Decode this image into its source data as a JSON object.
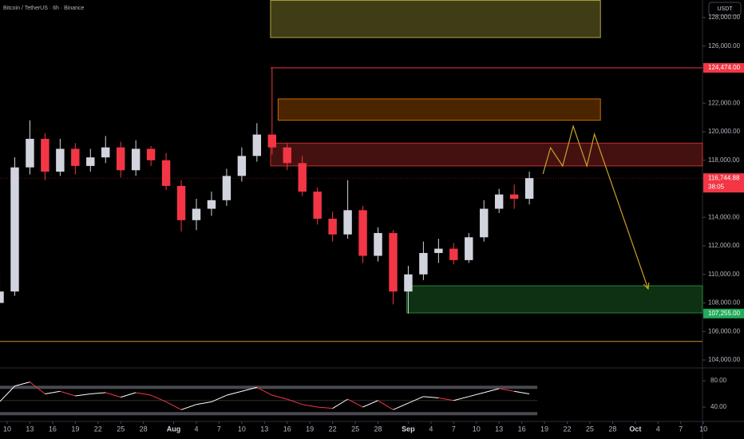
{
  "header": {
    "title": "Bitcoin / TetherUS · 6h · Binance",
    "currency_button": "USDT"
  },
  "chart_data": {
    "type": "candlestick",
    "x": [
      -1,
      1,
      3,
      5,
      7,
      9,
      11,
      13,
      15,
      17,
      19,
      21,
      23,
      25,
      27,
      29,
      31,
      33,
      35,
      37,
      39,
      41,
      43,
      45,
      47,
      49,
      51,
      53,
      55,
      57,
      59,
      61,
      63,
      65,
      67,
      69
    ],
    "open": [
      108000,
      108800,
      117500,
      119500,
      117200,
      118800,
      117600,
      118200,
      118900,
      117300,
      118800,
      118000,
      116200,
      113800,
      114600,
      115200,
      116900,
      118300,
      119800,
      118900,
      117800,
      115800,
      113900,
      112800,
      114500,
      111300,
      112900,
      108800,
      110000,
      111500,
      111800,
      111000,
      112600,
      114600,
      115600,
      115300
    ],
    "high": [
      110000,
      118200,
      120800,
      119900,
      119500,
      119200,
      118800,
      119700,
      119300,
      119400,
      119000,
      118500,
      116600,
      115300,
      115800,
      117400,
      118900,
      120600,
      124474,
      119200,
      118300,
      116100,
      114400,
      116600,
      114800,
      113300,
      113100,
      110600,
      112300,
      112500,
      112200,
      112900,
      115200,
      116000,
      116300,
      117200
    ],
    "low": [
      108200,
      108500,
      117000,
      116600,
      116900,
      117000,
      117200,
      117800,
      116800,
      116900,
      117600,
      115900,
      113000,
      113100,
      114100,
      114800,
      116500,
      117900,
      118400,
      117300,
      115500,
      113500,
      112300,
      112500,
      110800,
      110900,
      107900,
      107255,
      109600,
      110800,
      110700,
      110800,
      112300,
      114300,
      114600,
      114900
    ],
    "close": [
      108800,
      117500,
      119500,
      117200,
      118800,
      117600,
      118200,
      118900,
      117300,
      118800,
      118000,
      116200,
      113800,
      114600,
      115200,
      116900,
      118300,
      119800,
      118900,
      117800,
      115800,
      113900,
      112800,
      114500,
      111300,
      112900,
      108800,
      110000,
      111500,
      111800,
      111000,
      112600,
      114600,
      115600,
      115300,
      116744.88
    ],
    "up_color": "#d1d4dc",
    "down_color": "#f23645",
    "xlim": [
      -0.95,
      91.88
    ],
    "xticks": [
      {
        "value": 0,
        "label": "10"
      },
      {
        "value": 3,
        "label": "13"
      },
      {
        "value": 6,
        "label": "16"
      },
      {
        "value": 9,
        "label": "19"
      },
      {
        "value": 12,
        "label": "22"
      },
      {
        "value": 15,
        "label": "25"
      },
      {
        "value": 18,
        "label": "28"
      },
      {
        "value": 22,
        "label": "Aug"
      },
      {
        "value": 25,
        "label": "4"
      },
      {
        "value": 28,
        "label": "7"
      },
      {
        "value": 31,
        "label": "10"
      },
      {
        "value": 34,
        "label": "13"
      },
      {
        "value": 37,
        "label": "16"
      },
      {
        "value": 40,
        "label": "19"
      },
      {
        "value": 43,
        "label": "22"
      },
      {
        "value": 46,
        "label": "25"
      },
      {
        "value": 49,
        "label": "28"
      },
      {
        "value": 53,
        "label": "Sep"
      },
      {
        "value": 56,
        "label": "4"
      },
      {
        "value": 59,
        "label": "7"
      },
      {
        "value": 62,
        "label": "10"
      },
      {
        "value": 65,
        "label": "13"
      },
      {
        "value": 68,
        "label": "16"
      },
      {
        "value": 71,
        "label": "19"
      },
      {
        "value": 74,
        "label": "22"
      },
      {
        "value": 77,
        "label": "25"
      },
      {
        "value": 80,
        "label": "28"
      },
      {
        "value": 83,
        "label": "Oct"
      },
      {
        "value": 86,
        "label": "4"
      },
      {
        "value": 89,
        "label": "7"
      },
      {
        "value": 92,
        "label": "10"
      }
    ],
    "month_labels": [
      "Aug",
      "Sep",
      "Oct"
    ],
    "ylim": [
      103497,
      129231
    ],
    "yticks": [
      {
        "value": 128000,
        "label": "128,000.00"
      },
      {
        "value": 126000,
        "label": "126,000.00"
      },
      {
        "value": 122000,
        "label": "122,000.00"
      },
      {
        "value": 120000,
        "label": "120,000.00"
      },
      {
        "value": 118000,
        "label": "118,000.00"
      },
      {
        "value": 114000,
        "label": "114,000.00"
      },
      {
        "value": 112000,
        "label": "112,000.00"
      },
      {
        "value": 110000,
        "label": "110,000.00"
      },
      {
        "value": 108000,
        "label": "108,000.00"
      },
      {
        "value": 106000,
        "label": "106,000.00"
      },
      {
        "value": 104000,
        "label": "104,000.00"
      }
    ],
    "zones": [
      {
        "x0": 34.8,
        "x1": 78.4,
        "y0": 126600,
        "y1": 129200,
        "color": "#d4c64a"
      },
      {
        "x0": 35.8,
        "x1": 78.4,
        "y0": 120800,
        "y1": 122300,
        "color": "#f57c00"
      },
      {
        "x0": 34.8,
        "x1": 91.88,
        "y0": 117600,
        "y1": 119200,
        "color": "#e53935"
      },
      {
        "x0": 52.8,
        "x1": 91.88,
        "y0": 107300,
        "y1": 109200,
        "color": "#2e9e3e"
      }
    ],
    "levels": [
      {
        "x0": 34.8,
        "value": 124474,
        "color": "#f23645"
      },
      {
        "x0": -0.95,
        "value": 105300,
        "color": "#c9922e"
      }
    ],
    "projection": {
      "x": [
        70.8,
        71.8,
        73.4,
        74.8,
        76.6,
        77.6,
        84.7
      ],
      "y": [
        117037,
        118881,
        117594,
        120392,
        117594,
        119832,
        108980
      ],
      "color": "#c9a227"
    },
    "price_tags": [
      {
        "value": 124474,
        "label": "124,474.00",
        "color": "#f23645"
      },
      {
        "value": 116744.88,
        "label": "116,744.88",
        "countdown": "38:05",
        "color": "#f23645"
      },
      {
        "value": 107255,
        "label": "107,255.00",
        "color": "#22ab5a"
      }
    ],
    "rsi": {
      "values": [
        48,
        72,
        78,
        60,
        64,
        57,
        60,
        62,
        55,
        62,
        58,
        48,
        36,
        44,
        48,
        58,
        64,
        70,
        58,
        52,
        44,
        40,
        38,
        52,
        40,
        50,
        36,
        46,
        56,
        54,
        50,
        56,
        62,
        68,
        64,
        60
      ],
      "ylim": [
        18.2,
        98.2
      ],
      "yticks": [
        {
          "value": 80,
          "label": "80.00"
        },
        {
          "value": 40,
          "label": "40.00"
        }
      ],
      "bands": [
        30,
        50,
        70
      ],
      "color": "#ffffff"
    }
  }
}
